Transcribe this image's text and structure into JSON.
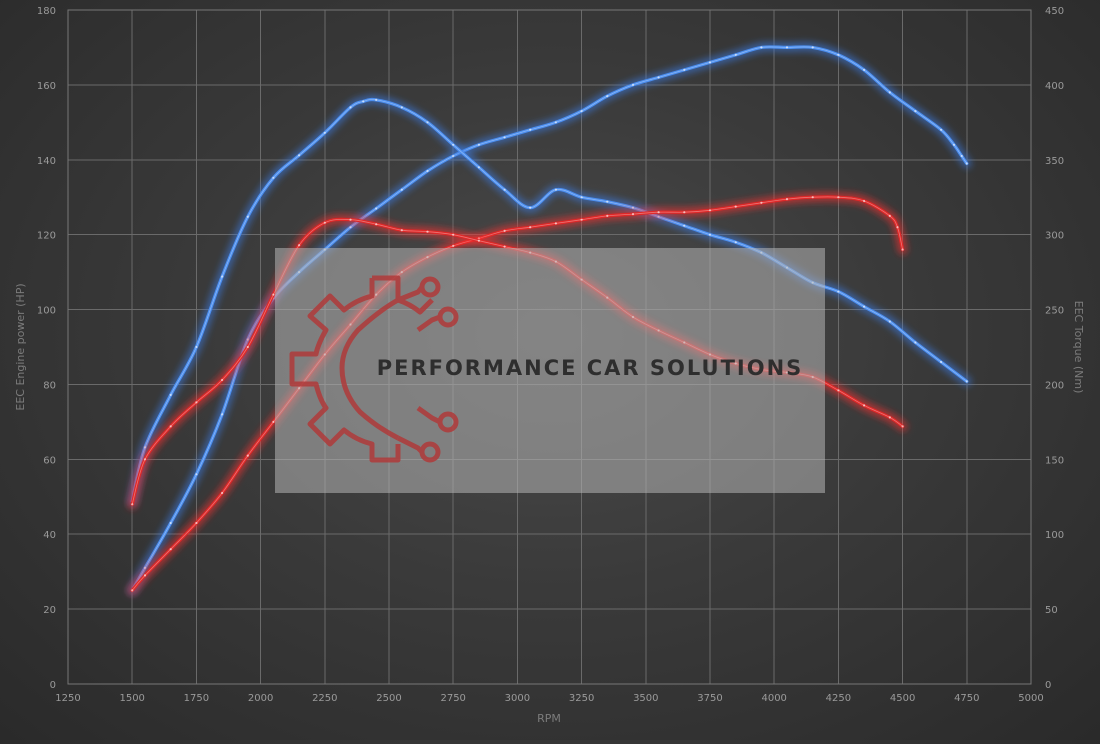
{
  "chart_data": {
    "type": "line",
    "xlabel": "RPM",
    "ylabel_left": "EEC Engine power (HP)",
    "ylabel_right": "EEC Torque (Nm)",
    "xlim": [
      1250,
      5000
    ],
    "ylim_left": [
      0,
      180
    ],
    "ylim_right": [
      0,
      450
    ],
    "x_ticks": [
      1250,
      1500,
      1750,
      2000,
      2250,
      2500,
      2750,
      3000,
      3250,
      3500,
      3750,
      4000,
      4250,
      4500,
      4750,
      5000
    ],
    "y_left_ticks": [
      0,
      20,
      40,
      60,
      80,
      100,
      120,
      140,
      160,
      180
    ],
    "y_right_ticks": [
      0,
      50,
      100,
      150,
      200,
      250,
      300,
      350,
      400,
      450
    ],
    "grid": true,
    "colors": {
      "tuned": "#4c8ff0",
      "stock": "#e02828",
      "glow_tuned": "#3a7ae0",
      "glow_stock": "#ff3030"
    },
    "series": [
      {
        "group": "tuned",
        "axis": "left",
        "quantity": "power",
        "x": [
          1500,
          1550,
          1650,
          1750,
          1850,
          1950,
          2050,
          2150,
          2250,
          2350,
          2450,
          2550,
          2650,
          2750,
          2850,
          2950,
          3050,
          3150,
          3250,
          3350,
          3450,
          3550,
          3650,
          3750,
          3850,
          3950,
          4050,
          4150,
          4250,
          4350,
          4450,
          4550,
          4650,
          4700,
          4730,
          4750
        ],
        "values": [
          25,
          31,
          43,
          56,
          72,
          92,
          103,
          110,
          116,
          122,
          127,
          132,
          137,
          141,
          144,
          146,
          148,
          150,
          153,
          157,
          160,
          162,
          164,
          166,
          168,
          170,
          170,
          170,
          168,
          164,
          158,
          153,
          148,
          144,
          141,
          139
        ]
      },
      {
        "group": "tuned",
        "axis": "right",
        "quantity": "torque",
        "x": [
          1500,
          1550,
          1650,
          1750,
          1850,
          1950,
          2050,
          2150,
          2250,
          2350,
          2400,
          2450,
          2550,
          2650,
          2750,
          2850,
          2950,
          3050,
          3150,
          3250,
          3350,
          3450,
          3550,
          3650,
          3750,
          3850,
          3950,
          4050,
          4150,
          4250,
          4350,
          4450,
          4550,
          4650,
          4750
        ],
        "values": [
          122,
          158,
          193,
          225,
          272,
          312,
          338,
          353,
          368,
          385,
          389,
          390,
          385,
          375,
          360,
          345,
          330,
          318,
          330,
          325,
          322,
          318,
          312,
          306,
          300,
          295,
          288,
          278,
          268,
          262,
          252,
          242,
          228,
          215,
          202
        ]
      },
      {
        "group": "stock",
        "axis": "left",
        "quantity": "power",
        "x": [
          1500,
          1550,
          1650,
          1750,
          1850,
          1950,
          2050,
          2150,
          2250,
          2350,
          2450,
          2550,
          2650,
          2750,
          2850,
          2950,
          3050,
          3150,
          3250,
          3350,
          3450,
          3550,
          3650,
          3750,
          3850,
          3950,
          4050,
          4150,
          4250,
          4350,
          4450,
          4480,
          4500
        ],
        "values": [
          25,
          29,
          36,
          43,
          51,
          61,
          70,
          79,
          88,
          96,
          104,
          110,
          114,
          117,
          119,
          121,
          122,
          123,
          124,
          125,
          125.5,
          126,
          126,
          126.5,
          127.5,
          128.5,
          129.5,
          130,
          130,
          129,
          125,
          122,
          116
        ]
      },
      {
        "group": "stock",
        "axis": "right",
        "quantity": "torque",
        "x": [
          1500,
          1550,
          1650,
          1750,
          1850,
          1950,
          2050,
          2150,
          2250,
          2350,
          2450,
          2550,
          2650,
          2750,
          2850,
          2950,
          3050,
          3150,
          3250,
          3350,
          3450,
          3550,
          3650,
          3750,
          3850,
          3950,
          4050,
          4150,
          4250,
          4350,
          4450,
          4500
        ],
        "values": [
          120,
          150,
          172,
          188,
          203,
          225,
          260,
          293,
          308,
          310,
          307,
          303,
          302,
          300,
          296,
          292,
          288,
          282,
          270,
          258,
          245,
          236,
          228,
          220,
          214,
          210,
          208,
          205,
          196,
          186,
          178,
          172
        ]
      }
    ]
  },
  "watermark": {
    "text": "PERFORMANCE CAR SOLUTIONS",
    "logo": "gear-circuit-logo"
  }
}
